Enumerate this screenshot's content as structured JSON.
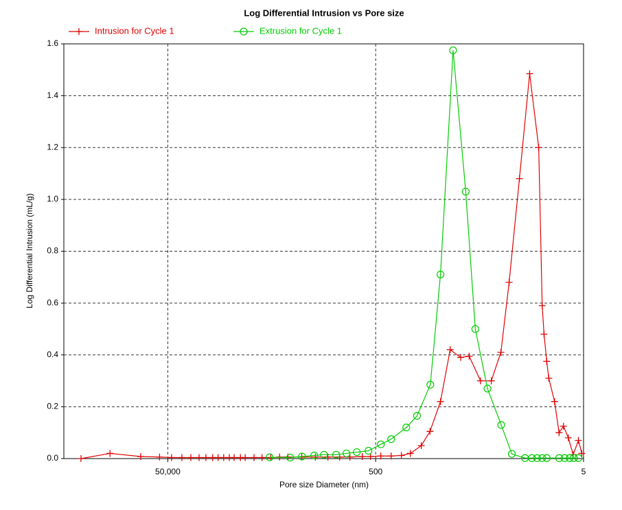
{
  "chart_data": {
    "type": "line",
    "title": "Log Differential Intrusion vs Pore size",
    "x_label": "Pore size Diameter (nm)",
    "y_label": "Log Differential Intrusion (mL/g)",
    "xscale": "log",
    "xlim": [
      500000,
      5
    ],
    "xticks": [
      {
        "value": 50000,
        "label": "50,000"
      },
      500,
      5
    ],
    "ylim": [
      0,
      1.6
    ],
    "yticks": [
      {
        "value": 0,
        "label": "0.0"
      },
      0.2,
      0.4,
      0.6,
      0.8,
      {
        "value": 1,
        "label": "1.0"
      },
      1.2,
      1.4,
      1.6
    ],
    "grid": true,
    "legend": "top-left",
    "series": [
      {
        "name": "Intrusion for Cycle 1",
        "color": "#e00000",
        "marker": "plus",
        "x": [
          342000,
          180000,
          91000,
          60000,
          46000,
          36600,
          30000,
          25000,
          21500,
          18500,
          16400,
          14500,
          12800,
          11500,
          10000,
          9000,
          7400,
          6200,
          5100,
          4200,
          3500,
          2570,
          1900,
          1440,
          1110,
          885,
          673,
          560,
          446,
          355,
          283,
          232,
          182,
          150,
          119,
          96,
          76,
          63,
          49,
          38.6,
          31.2,
          26,
          20.7,
          16.5,
          13.5,
          12.5,
          12,
          11.3,
          10.8,
          9.5,
          8.6,
          7.8,
          7,
          6.3,
          5.6,
          5.2
        ],
        "values": [
          0,
          0.02,
          0.008,
          0.006,
          0.004,
          0.004,
          0.004,
          0.004,
          0.004,
          0.004,
          0.004,
          0.004,
          0.004,
          0.004,
          0.004,
          0.004,
          0.004,
          0.004,
          0.004,
          0.006,
          0.006,
          0.006,
          0.006,
          0.006,
          0.006,
          0.006,
          0.008,
          0.008,
          0.01,
          0.01,
          0.012,
          0.02,
          0.05,
          0.105,
          0.22,
          0.42,
          0.39,
          0.395,
          0.3,
          0.3,
          0.41,
          0.68,
          1.08,
          1.485,
          1.2,
          0.59,
          0.48,
          0.375,
          0.31,
          0.22,
          0.1,
          0.125,
          0.08,
          0.015,
          0.07,
          0.02
        ]
      },
      {
        "name": "Extrusion for Cycle 1",
        "color": "#00cc00",
        "marker": "circle",
        "x": [
          5240,
          3320,
          2560,
          1950,
          1570,
          1200,
          955,
          760,
          587,
          446,
          355,
          254,
          200,
          149,
          119,
          90,
          68,
          55,
          42,
          31,
          24.5,
          18.3,
          15.7,
          14,
          12.5,
          11.3,
          8.6,
          7.6,
          6.8,
          6.2,
          5.6
        ],
        "values": [
          0.005,
          0.004,
          0.008,
          0.012,
          0.015,
          0.015,
          0.02,
          0.025,
          0.03,
          0.055,
          0.075,
          0.12,
          0.165,
          0.285,
          0.71,
          1.575,
          1.03,
          0.5,
          0.27,
          0.13,
          0.018,
          0.002,
          0.002,
          0.002,
          0.002,
          0.002,
          0.002,
          0.002,
          0.002,
          0.002,
          0.002
        ]
      }
    ]
  }
}
